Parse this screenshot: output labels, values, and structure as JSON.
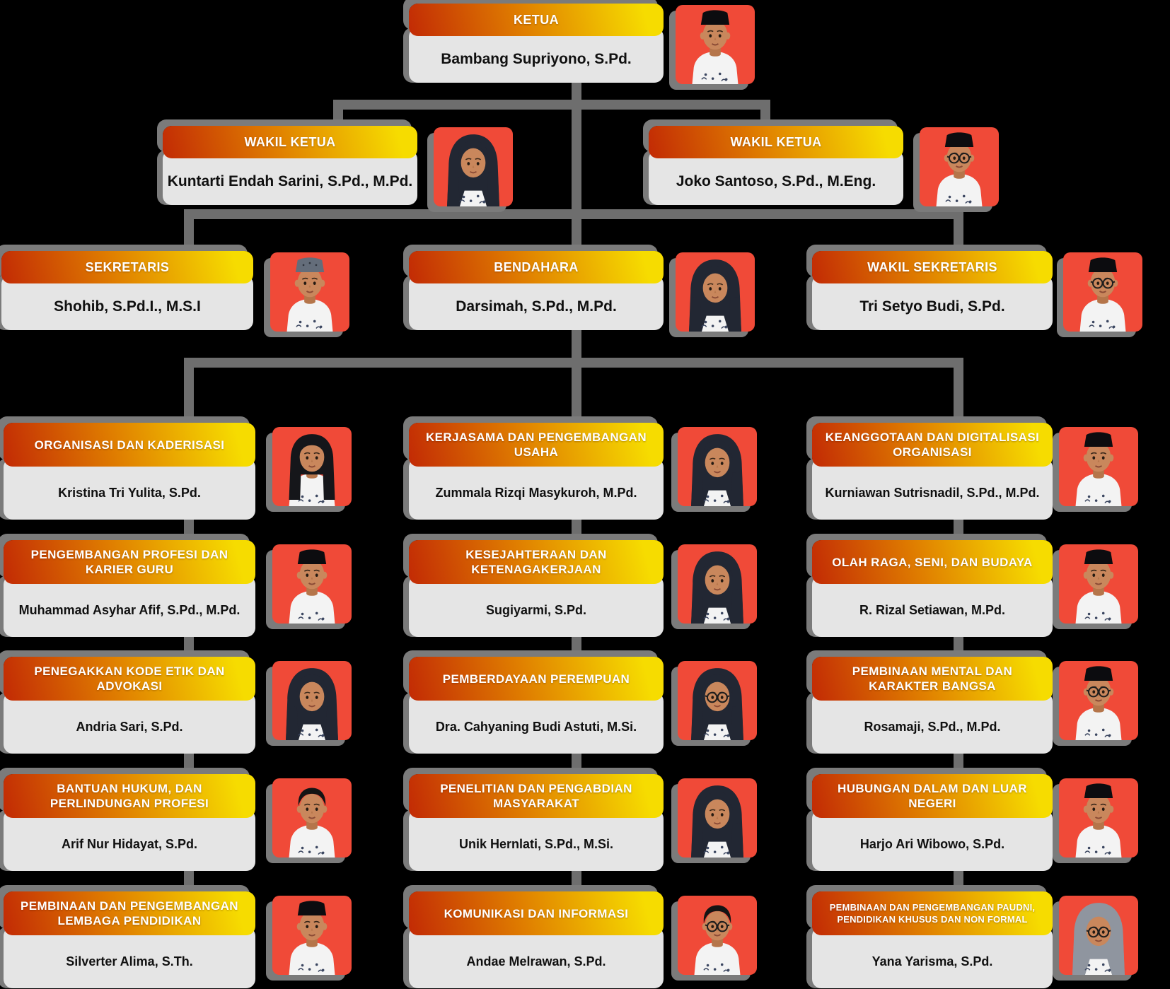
{
  "palette": {
    "background": "#000000",
    "header_gradient_start": "#c22a05",
    "header_gradient_mid": "#e07f00",
    "header_gradient_end": "#f6dc00",
    "header_text": "#ffffff",
    "body_bg": "#e5e5e5",
    "body_text": "#101010",
    "photo_bg": "#f04a38",
    "connector": "#6e6e6e",
    "shadow": "#7b7b7b"
  },
  "hierarchy": {
    "level1": "KETUA",
    "level2": [
      "WAKIL KETUA",
      "WAKIL KETUA"
    ],
    "level3": [
      "SEKRETARIS",
      "BENDAHARA",
      "WAKIL SEKRETARIS"
    ],
    "level4_columns": 3,
    "level4_rows": 5
  },
  "nodes": [
    {
      "id": "ketua",
      "title": "KETUA",
      "name": "Bambang Supriyono, S.Pd.",
      "avatar": "male-peci"
    },
    {
      "id": "wakil-ketua-1",
      "title": "WAKIL KETUA",
      "name": "Kuntarti Endah Sarini, S.Pd., M.Pd.",
      "avatar": "female-hijab-dark"
    },
    {
      "id": "wakil-ketua-2",
      "title": "WAKIL KETUA",
      "name": "Joko Santoso, S.Pd., M.Eng.",
      "avatar": "male-peci-glasses"
    },
    {
      "id": "sekretaris",
      "title": "SEKRETARIS",
      "name": "Shohib, S.Pd.I., M.S.I",
      "avatar": "male-kufi"
    },
    {
      "id": "bendahara",
      "title": "BENDAHARA",
      "name": "Darsimah, S.Pd., M.Pd.",
      "avatar": "female-hijab-dark"
    },
    {
      "id": "wakil-sekretaris",
      "title": "WAKIL SEKRETARIS",
      "name": "Tri Setyo Budi, S.Pd.",
      "avatar": "male-peci-glasses"
    },
    {
      "id": "organisasi-dan-kaderisasi",
      "title": "ORGANISASI DAN KADERISASI",
      "name": "Kristina Tri Yulita, S.Pd.",
      "avatar": "female-hair"
    },
    {
      "id": "pengembangan-profesi-dan-karier-guru",
      "title": "PENGEMBANGAN PROFESI DAN KARIER GURU",
      "name": "Muhammad Asyhar Afif, S.Pd., M.Pd.",
      "avatar": "male-peci"
    },
    {
      "id": "penegakkan-kode-etik-dan-advokasi",
      "title": "PENEGAKKAN KODE ETIK DAN ADVOKASI",
      "name": "Andria Sari, S.Pd.",
      "avatar": "female-hijab-dark"
    },
    {
      "id": "bantuan-hukum-dan-perlindungan-profesi",
      "title": "BANTUAN HUKUM, DAN PERLINDUNGAN PROFESI",
      "name": "Arif Nur Hidayat, S.Pd.",
      "avatar": "male-hair"
    },
    {
      "id": "pembinaan-dan-pengembangan-lembaga-pendidikan",
      "title": "PEMBINAAN DAN PENGEMBANGAN LEMBAGA PENDIDIKAN",
      "name": "Silverter Alima, S.Th.",
      "avatar": "male-peci"
    },
    {
      "id": "kerjasama-dan-pengembangan-usaha",
      "title": "KERJASAMA DAN PENGEMBANGAN USAHA",
      "name": "Zummala Rizqi Masykuroh, M.Pd.",
      "avatar": "female-hijab-dark"
    },
    {
      "id": "kesejahteraan-dan-ketenagakerjaan",
      "title": "KESEJAHTERAAN DAN KETENAGAKERJAAN",
      "name": "Sugiyarmi, S.Pd.",
      "avatar": "female-hijab-dark"
    },
    {
      "id": "pemberdayaan-perempuan",
      "title": "PEMBERDAYAAN PEREMPUAN",
      "name": "Dra. Cahyaning Budi Astuti, M.Si.",
      "avatar": "female-hijab-glasses"
    },
    {
      "id": "penelitian-dan-pengabdian-masyarakat",
      "title": "PENELITIAN DAN PENGABDIAN MASYARAKAT",
      "name": "Unik Hernlati, S.Pd., M.Si.",
      "avatar": "female-hijab-dark"
    },
    {
      "id": "komunikasi-dan-informasi",
      "title": "KOMUNIKASI DAN INFORMASI",
      "name": "Andae Melrawan, S.Pd.",
      "avatar": "male-hair-glasses"
    },
    {
      "id": "keanggotaan-dan-digitalisasi-organisasi",
      "title": "KEANGGOTAAN DAN DIGITALISASI ORGANISASI",
      "name": "Kurniawan Sutrisnadil, S.Pd., M.Pd.",
      "avatar": "male-peci"
    },
    {
      "id": "olah-raga-seni-dan-budaya",
      "title": "OLAH RAGA, SENI, DAN BUDAYA",
      "name": "R. Rizal Setiawan, M.Pd.",
      "avatar": "male-peci"
    },
    {
      "id": "pembinaan-mental-dan-karakter-bangsa",
      "title": "PEMBINAAN MENTAL DAN KARAKTER BANGSA",
      "name": "Rosamaji, S.Pd., M.Pd.",
      "avatar": "male-peci-glasses"
    },
    {
      "id": "hubungan-dalam-dan-luar-negeri",
      "title": "HUBUNGAN DALAM DAN LUAR NEGERI",
      "name": "Harjo Ari Wibowo, S.Pd.",
      "avatar": "male-peci"
    },
    {
      "id": "pembinaan-paudni-pendidikan-khusus-non-formal",
      "title": "PEMBINAAN DAN PENGEMBANGAN PAUDNI, PENDIDIKAN KHUSUS DAN NON FORMAL",
      "name": "Yana Yarisma, S.Pd.",
      "avatar": "female-hijab-gray-glasses"
    }
  ]
}
